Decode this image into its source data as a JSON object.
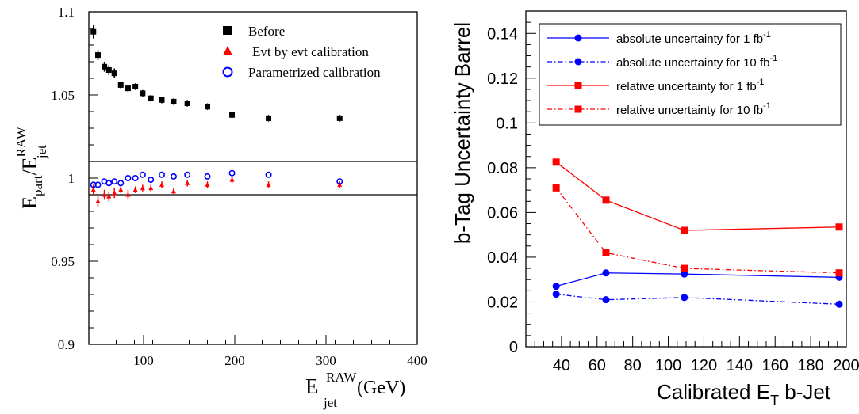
{
  "chart_data": [
    {
      "type": "scatter",
      "title": "",
      "xlabel": {
        "main": "E",
        "sup": "RAW",
        "sub": "jet",
        "unit": "(GeV)"
      },
      "ylabel": {
        "a": "E",
        "a_sub": "part",
        "b": "/E",
        "b_sup": "RAW",
        "b_sub": "jet"
      },
      "xlim": [
        40,
        400
      ],
      "ylim": [
        0.9,
        1.1
      ],
      "xticks": [
        100,
        200,
        300,
        400
      ],
      "yticks": [
        0.9,
        0.95,
        1,
        1.05,
        1.1
      ],
      "ytick_labels": [
        "0.9",
        "0.95",
        "1",
        "1.05",
        "1.1"
      ],
      "reference_lines": [
        0.99,
        1.01
      ],
      "legend_position": "top-right",
      "series": [
        {
          "name": "Before",
          "marker": "square",
          "color": "#000000",
          "x": [
            45,
            50,
            57,
            62,
            68,
            75,
            83,
            91,
            99,
            108,
            120,
            133,
            148,
            170,
            197,
            237,
            315
          ],
          "y": [
            1.088,
            1.074,
            1.067,
            1.065,
            1.063,
            1.056,
            1.054,
            1.055,
            1.051,
            1.048,
            1.047,
            1.046,
            1.045,
            1.043,
            1.038,
            1.036,
            1.036
          ],
          "err": [
            0.004,
            0.003,
            0.003,
            0.003,
            0.003,
            0.002,
            0.002,
            0.002,
            0.002,
            0.002,
            0.002,
            0.002,
            0.002,
            0.002,
            0.002,
            0.002,
            0.002
          ]
        },
        {
          "name": "Evt by evt calibration",
          "marker": "triangle",
          "color": "#ff0000",
          "x": [
            45,
            50,
            57,
            62,
            68,
            75,
            83,
            91,
            99,
            108,
            120,
            133,
            148,
            170,
            197,
            237,
            315
          ],
          "y": [
            0.993,
            0.986,
            0.99,
            0.989,
            0.991,
            0.993,
            0.99,
            0.993,
            0.994,
            0.994,
            0.996,
            0.992,
            0.997,
            0.996,
            0.999,
            0.996,
            0.996
          ],
          "err": [
            0.003,
            0.003,
            0.003,
            0.003,
            0.003,
            0.002,
            0.003,
            0.002,
            0.002,
            0.002,
            0.002,
            0.002,
            0.002,
            0.002,
            0.002,
            0.002,
            0.002
          ]
        },
        {
          "name": "Parametrized calibration",
          "marker": "open-circle",
          "color": "#0000ff",
          "x": [
            45,
            50,
            57,
            62,
            68,
            75,
            83,
            91,
            99,
            108,
            120,
            133,
            148,
            170,
            197,
            237,
            315
          ],
          "y": [
            0.996,
            0.996,
            0.998,
            0.997,
            0.998,
            0.997,
            1.0,
            1.0,
            1.002,
            0.999,
            1.002,
            1.001,
            1.002,
            1.001,
            1.003,
            1.002,
            0.998
          ],
          "err": [
            0,
            0,
            0,
            0,
            0,
            0,
            0,
            0,
            0,
            0,
            0,
            0,
            0,
            0,
            0,
            0,
            0
          ]
        }
      ]
    },
    {
      "type": "line",
      "title": "",
      "xlabel": {
        "main": "Calibrated E",
        "sub": "T",
        "tail": " b-Jet"
      },
      "ylabel": "b-Tag Uncertainty Barrel",
      "xlim": [
        20,
        200
      ],
      "ylim": [
        0,
        0.15
      ],
      "xticks": [
        40,
        60,
        80,
        100,
        120,
        140,
        160,
        180,
        200
      ],
      "yticks": [
        0,
        0.02,
        0.04,
        0.06,
        0.08,
        0.1,
        0.12,
        0.14
      ],
      "ytick_labels": [
        "0",
        "0.02",
        "0.04",
        "0.06",
        "0.08",
        "0.1",
        "0.12",
        "0.14"
      ],
      "grid": false,
      "legend_position": "top",
      "x": [
        37,
        65,
        109,
        196
      ],
      "series": [
        {
          "name": "absolute uncertainty for 1 fb",
          "name_sup": "-1",
          "color": "#0000ff",
          "marker": "circle",
          "dash": "solid",
          "values": [
            0.027,
            0.033,
            0.0325,
            0.031
          ]
        },
        {
          "name": "absolute uncertainty for 10 fb",
          "name_sup": "-1",
          "color": "#0000ff",
          "marker": "circle",
          "dash": "dashdot",
          "values": [
            0.0235,
            0.021,
            0.022,
            0.019
          ]
        },
        {
          "name": "relative uncertainty for 1 fb",
          "name_sup": "-1",
          "color": "#ff0000",
          "marker": "square",
          "dash": "solid",
          "values": [
            0.0825,
            0.0655,
            0.052,
            0.0535
          ]
        },
        {
          "name": "relative uncertainty for 10 fb",
          "name_sup": "-1",
          "color": "#ff0000",
          "marker": "square",
          "dash": "dashdot",
          "values": [
            0.071,
            0.042,
            0.035,
            0.033
          ]
        }
      ]
    }
  ]
}
